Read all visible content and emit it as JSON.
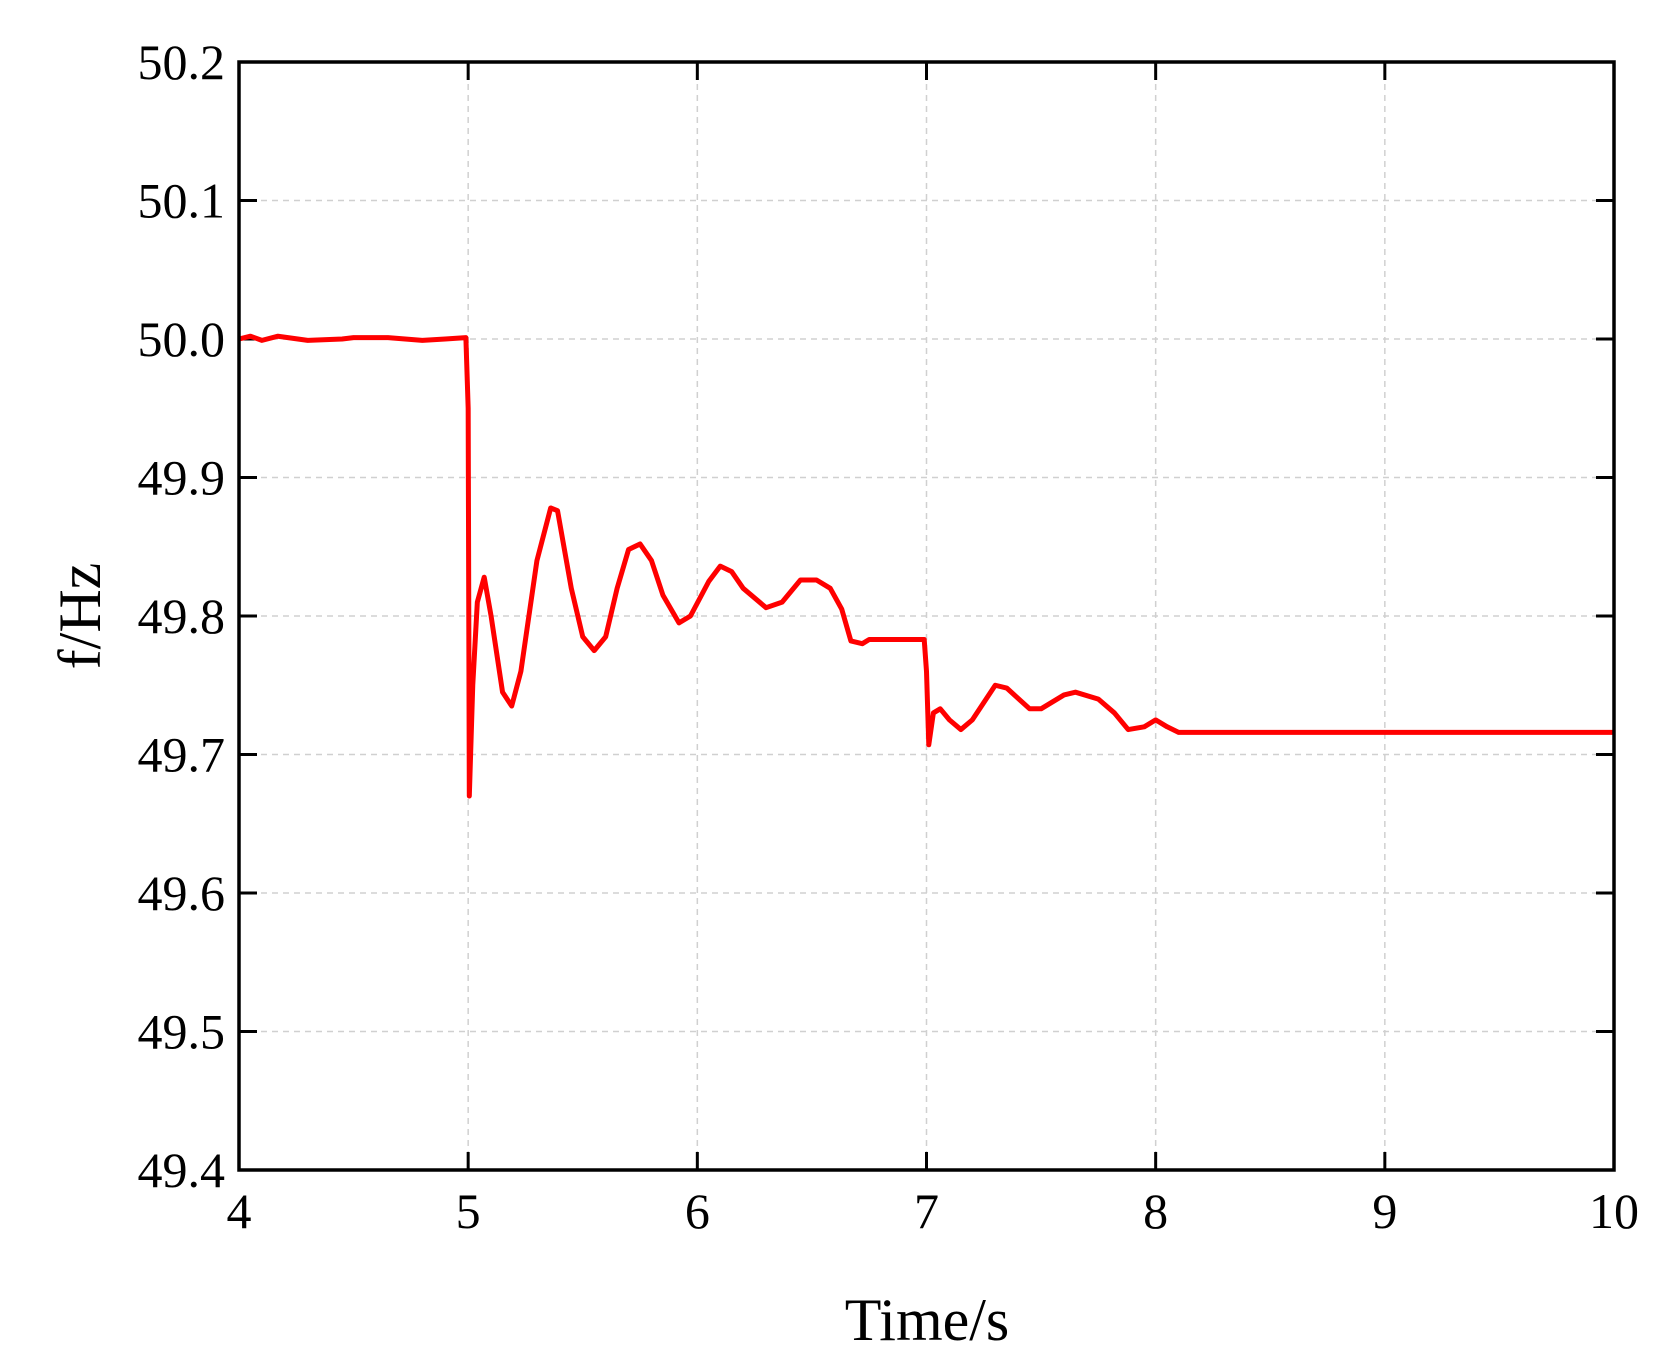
{
  "chart_data": {
    "type": "line",
    "xlabel": "Time/s",
    "ylabel": "f/Hz",
    "xlim": [
      4,
      10
    ],
    "xticks": [
      4,
      5,
      6,
      7,
      8,
      9,
      10
    ],
    "ylim": [
      49.4,
      50.2
    ],
    "yticks": [
      49.4,
      49.5,
      49.6,
      49.7,
      49.8,
      49.9,
      {
        "value": 50,
        "label": "50.0"
      },
      50.1,
      50.2
    ],
    "grid": true,
    "series": [
      {
        "color": "#ff0000",
        "x": [
          4.0,
          4.05,
          4.1,
          4.17,
          4.3,
          4.45,
          4.5,
          4.65,
          4.8,
          4.9,
          4.99,
          5.0,
          5.005,
          5.02,
          5.04,
          5.07,
          5.1,
          5.15,
          5.19,
          5.23,
          5.3,
          5.36,
          5.39,
          5.45,
          5.5,
          5.55,
          5.6,
          5.65,
          5.7,
          5.75,
          5.8,
          5.85,
          5.92,
          5.97,
          6.05,
          6.1,
          6.15,
          6.2,
          6.3,
          6.37,
          6.45,
          6.52,
          6.58,
          6.63,
          6.67,
          6.72,
          6.75,
          6.99,
          7.0,
          7.01,
          7.03,
          7.06,
          7.1,
          7.15,
          7.2,
          7.3,
          7.35,
          7.45,
          7.5,
          7.6,
          7.65,
          7.75,
          7.82,
          7.88,
          7.95,
          8.0,
          8.05,
          8.1,
          9.0,
          10.0
        ],
        "values": [
          50.0,
          50.002,
          49.999,
          50.002,
          49.999,
          50.0,
          50.001,
          50.001,
          49.999,
          50.0,
          50.001,
          49.95,
          49.67,
          49.75,
          49.81,
          49.828,
          49.8,
          49.745,
          49.735,
          49.76,
          49.84,
          49.878,
          49.876,
          49.82,
          49.785,
          49.775,
          49.785,
          49.82,
          49.848,
          49.852,
          49.84,
          49.815,
          49.795,
          49.8,
          49.825,
          49.836,
          49.832,
          49.82,
          49.806,
          49.81,
          49.826,
          49.826,
          49.82,
          49.805,
          49.782,
          49.78,
          49.783,
          49.783,
          49.76,
          49.707,
          49.73,
          49.733,
          49.725,
          49.718,
          49.725,
          49.75,
          49.748,
          49.733,
          49.733,
          49.743,
          49.745,
          49.74,
          49.73,
          49.718,
          49.72,
          49.725,
          49.72,
          49.716,
          49.716,
          49.716
        ]
      }
    ]
  }
}
